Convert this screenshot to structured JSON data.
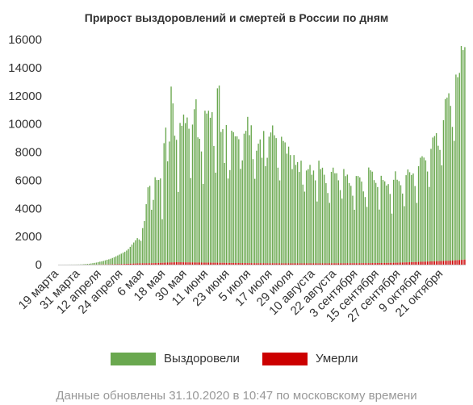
{
  "chart_data": {
    "type": "bar",
    "stacked": true,
    "title": "Прирост выздоровлений и смертей в России по дням",
    "ylim": [
      0,
      16000
    ],
    "y_ticks": [
      "0",
      "2000",
      "4000",
      "6000",
      "8000",
      "10000",
      "12000",
      "14000",
      "16000"
    ],
    "x_tick_labels": [
      "19 марта",
      "31 марта",
      "12 апреля",
      "24 апреля",
      "6 мая",
      "18 мая",
      "30 мая",
      "11 июня",
      "23 июня",
      "5 июля",
      "17 июля",
      "29 июля",
      "10 августа",
      "22 августа",
      "3 сентября",
      "15 сентября",
      "27 сентября",
      "9 октября",
      "21 октября"
    ],
    "x_start_date": "2020-03-19",
    "x_end_date": "2020-10-31",
    "x_tick_every_days": 12,
    "series": [
      {
        "name": "Выздоровели",
        "color": "#6aa84f",
        "values": [
          1,
          1,
          1,
          2,
          2,
          3,
          4,
          5,
          5,
          6,
          8,
          10,
          15,
          20,
          30,
          40,
          50,
          60,
          80,
          100,
          120,
          140,
          170,
          200,
          220,
          250,
          290,
          330,
          360,
          400,
          450,
          500,
          560,
          620,
          680,
          740,
          800,
          860,
          950,
          1050,
          1200,
          1350,
          1500,
          1650,
          1800,
          1700,
          1600,
          2500,
          3000,
          4200,
          5400,
          5500,
          3800,
          4500,
          6100,
          5900,
          5900,
          6000,
          3100,
          8500,
          9600,
          7200,
          8600,
          12500,
          11300,
          9000,
          8700,
          5000,
          9900,
          9700,
          10500,
          9900,
          10300,
          9500,
          6000,
          9800,
          10900,
          11600,
          8900,
          8800,
          7900,
          5600,
          10800,
          10600,
          10800,
          10300,
          10700,
          8300,
          6400,
          12400,
          12600,
          9300,
          9500,
          7100,
          9800,
          6000,
          6600,
          9400,
          9300,
          9000,
          9000,
          8800,
          6700,
          7300,
          9200,
          9400,
          10400,
          9100,
          9800,
          7400,
          6000,
          8000,
          8500,
          8800,
          7500,
          9400,
          6900,
          7500,
          9000,
          9300,
          9800,
          9100,
          8900,
          6800,
          5900,
          9000,
          8700,
          8600,
          7800,
          8300,
          7700,
          6700,
          7700,
          7000,
          7200,
          6500,
          7300,
          5600,
          5100,
          6600,
          6700,
          7000,
          6300,
          6600,
          5900,
          4400,
          7300,
          6700,
          6800,
          6300,
          5700,
          5000,
          4300,
          6500,
          6800,
          6400,
          6400,
          5900,
          5200,
          4600,
          6700,
          6200,
          6300,
          5700,
          5500,
          4800,
          3800,
          6200,
          6200,
          6100,
          5800,
          5100,
          4700,
          4000,
          6800,
          6600,
          6500,
          5900,
          5700,
          5400,
          3800,
          6200,
          5900,
          5800,
          5500,
          5600,
          4900,
          3500,
          5900,
          6500,
          5900,
          5800,
          5500,
          4900,
          4000,
          6200,
          6600,
          6400,
          6200,
          6300,
          5400,
          4200,
          6800,
          7400,
          7500,
          7400,
          7200,
          6400,
          5300,
          8000,
          8800,
          8900,
          9100,
          8200,
          7900,
          6800,
          10000,
          11500,
          11600,
          11900,
          11000,
          9500,
          8500,
          13200,
          13000,
          13300,
          15200,
          14900,
          15100
        ]
      },
      {
        "name": "Умерли",
        "color": "#cc0000",
        "values": [
          0,
          0,
          0,
          0,
          0,
          0,
          0,
          0,
          0,
          0,
          0,
          0,
          0,
          0,
          1,
          1,
          1,
          2,
          2,
          3,
          4,
          5,
          6,
          8,
          10,
          12,
          14,
          16,
          18,
          20,
          22,
          25,
          28,
          32,
          36,
          40,
          45,
          50,
          55,
          60,
          65,
          70,
          75,
          80,
          85,
          90,
          95,
          95,
          96,
          97,
          98,
          99,
          100,
          105,
          110,
          115,
          120,
          125,
          130,
          135,
          140,
          145,
          150,
          155,
          160,
          165,
          170,
          170,
          170,
          170,
          165,
          160,
          160,
          160,
          155,
          155,
          150,
          150,
          150,
          145,
          145,
          140,
          140,
          140,
          140,
          140,
          135,
          135,
          135,
          135,
          130,
          130,
          130,
          125,
          125,
          120,
          120,
          120,
          115,
          115,
          115,
          115,
          110,
          110,
          110,
          110,
          105,
          105,
          105,
          100,
          100,
          100,
          100,
          100,
          100,
          100,
          95,
          95,
          95,
          95,
          95,
          95,
          95,
          95,
          90,
          90,
          90,
          90,
          90,
          90,
          90,
          90,
          90,
          90,
          90,
          90,
          90,
          90,
          90,
          90,
          90,
          90,
          90,
          90,
          90,
          90,
          90,
          90,
          90,
          90,
          90,
          90,
          90,
          95,
          95,
          95,
          95,
          95,
          95,
          95,
          95,
          95,
          100,
          100,
          100,
          100,
          100,
          100,
          100,
          100,
          105,
          105,
          105,
          105,
          105,
          105,
          110,
          110,
          110,
          115,
          115,
          115,
          120,
          120,
          120,
          125,
          125,
          130,
          130,
          135,
          135,
          140,
          145,
          150,
          155,
          160,
          165,
          170,
          175,
          180,
          185,
          190,
          195,
          200,
          205,
          210,
          215,
          220,
          225,
          230,
          235,
          240,
          245,
          250,
          255,
          260,
          265,
          270,
          275,
          280,
          285,
          290,
          300,
          310,
          320,
          330,
          340,
          350,
          360
        ]
      }
    ],
    "legend": [
      "Выздоровели",
      "Умерли"
    ],
    "legend_position": "bottom",
    "grid": false
  },
  "footer": {
    "note": "Данные обновлены 31.10.2020 в 10:47 по московскому времени"
  }
}
